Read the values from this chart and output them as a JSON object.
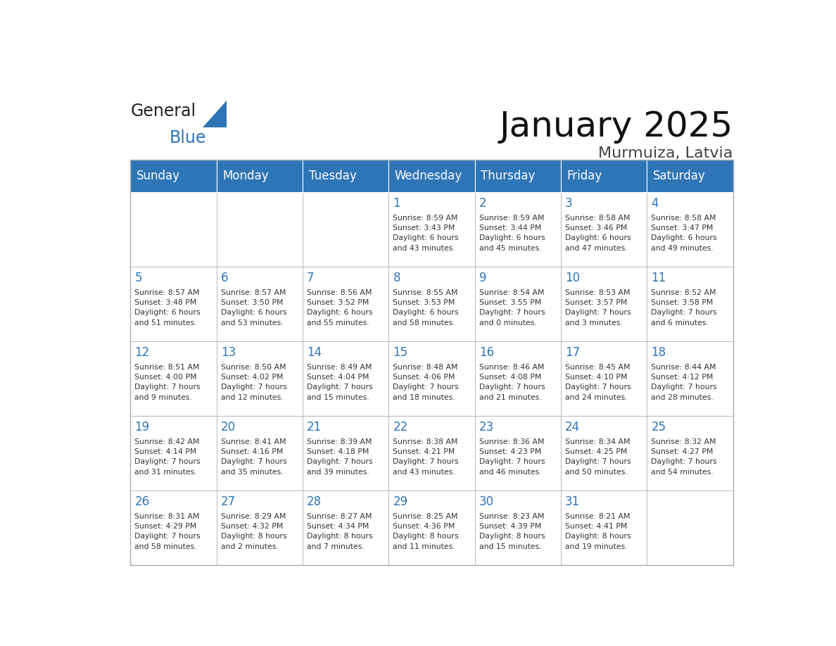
{
  "title": "January 2025",
  "subtitle": "Murmuiza, Latvia",
  "header_color": "#2E75B6",
  "header_text_color": "#FFFFFF",
  "cell_bg_color": "#FFFFFF",
  "cell_text_color": "#333333",
  "day_num_color": "#2E75B6",
  "grid_color": "#AAAAAA",
  "days_of_week": [
    "Sunday",
    "Monday",
    "Tuesday",
    "Wednesday",
    "Thursday",
    "Friday",
    "Saturday"
  ],
  "weeks": [
    [
      {
        "day": "",
        "info": ""
      },
      {
        "day": "",
        "info": ""
      },
      {
        "day": "",
        "info": ""
      },
      {
        "day": "1",
        "info": "Sunrise: 8:59 AM\nSunset: 3:43 PM\nDaylight: 6 hours\nand 43 minutes."
      },
      {
        "day": "2",
        "info": "Sunrise: 8:59 AM\nSunset: 3:44 PM\nDaylight: 6 hours\nand 45 minutes."
      },
      {
        "day": "3",
        "info": "Sunrise: 8:58 AM\nSunset: 3:46 PM\nDaylight: 6 hours\nand 47 minutes."
      },
      {
        "day": "4",
        "info": "Sunrise: 8:58 AM\nSunset: 3:47 PM\nDaylight: 6 hours\nand 49 minutes."
      }
    ],
    [
      {
        "day": "5",
        "info": "Sunrise: 8:57 AM\nSunset: 3:48 PM\nDaylight: 6 hours\nand 51 minutes."
      },
      {
        "day": "6",
        "info": "Sunrise: 8:57 AM\nSunset: 3:50 PM\nDaylight: 6 hours\nand 53 minutes."
      },
      {
        "day": "7",
        "info": "Sunrise: 8:56 AM\nSunset: 3:52 PM\nDaylight: 6 hours\nand 55 minutes."
      },
      {
        "day": "8",
        "info": "Sunrise: 8:55 AM\nSunset: 3:53 PM\nDaylight: 6 hours\nand 58 minutes."
      },
      {
        "day": "9",
        "info": "Sunrise: 8:54 AM\nSunset: 3:55 PM\nDaylight: 7 hours\nand 0 minutes."
      },
      {
        "day": "10",
        "info": "Sunrise: 8:53 AM\nSunset: 3:57 PM\nDaylight: 7 hours\nand 3 minutes."
      },
      {
        "day": "11",
        "info": "Sunrise: 8:52 AM\nSunset: 3:58 PM\nDaylight: 7 hours\nand 6 minutes."
      }
    ],
    [
      {
        "day": "12",
        "info": "Sunrise: 8:51 AM\nSunset: 4:00 PM\nDaylight: 7 hours\nand 9 minutes."
      },
      {
        "day": "13",
        "info": "Sunrise: 8:50 AM\nSunset: 4:02 PM\nDaylight: 7 hours\nand 12 minutes."
      },
      {
        "day": "14",
        "info": "Sunrise: 8:49 AM\nSunset: 4:04 PM\nDaylight: 7 hours\nand 15 minutes."
      },
      {
        "day": "15",
        "info": "Sunrise: 8:48 AM\nSunset: 4:06 PM\nDaylight: 7 hours\nand 18 minutes."
      },
      {
        "day": "16",
        "info": "Sunrise: 8:46 AM\nSunset: 4:08 PM\nDaylight: 7 hours\nand 21 minutes."
      },
      {
        "day": "17",
        "info": "Sunrise: 8:45 AM\nSunset: 4:10 PM\nDaylight: 7 hours\nand 24 minutes."
      },
      {
        "day": "18",
        "info": "Sunrise: 8:44 AM\nSunset: 4:12 PM\nDaylight: 7 hours\nand 28 minutes."
      }
    ],
    [
      {
        "day": "19",
        "info": "Sunrise: 8:42 AM\nSunset: 4:14 PM\nDaylight: 7 hours\nand 31 minutes."
      },
      {
        "day": "20",
        "info": "Sunrise: 8:41 AM\nSunset: 4:16 PM\nDaylight: 7 hours\nand 35 minutes."
      },
      {
        "day": "21",
        "info": "Sunrise: 8:39 AM\nSunset: 4:18 PM\nDaylight: 7 hours\nand 39 minutes."
      },
      {
        "day": "22",
        "info": "Sunrise: 8:38 AM\nSunset: 4:21 PM\nDaylight: 7 hours\nand 43 minutes."
      },
      {
        "day": "23",
        "info": "Sunrise: 8:36 AM\nSunset: 4:23 PM\nDaylight: 7 hours\nand 46 minutes."
      },
      {
        "day": "24",
        "info": "Sunrise: 8:34 AM\nSunset: 4:25 PM\nDaylight: 7 hours\nand 50 minutes."
      },
      {
        "day": "25",
        "info": "Sunrise: 8:32 AM\nSunset: 4:27 PM\nDaylight: 7 hours\nand 54 minutes."
      }
    ],
    [
      {
        "day": "26",
        "info": "Sunrise: 8:31 AM\nSunset: 4:29 PM\nDaylight: 7 hours\nand 58 minutes."
      },
      {
        "day": "27",
        "info": "Sunrise: 8:29 AM\nSunset: 4:32 PM\nDaylight: 8 hours\nand 2 minutes."
      },
      {
        "day": "28",
        "info": "Sunrise: 8:27 AM\nSunset: 4:34 PM\nDaylight: 8 hours\nand 7 minutes."
      },
      {
        "day": "29",
        "info": "Sunrise: 8:25 AM\nSunset: 4:36 PM\nDaylight: 8 hours\nand 11 minutes."
      },
      {
        "day": "30",
        "info": "Sunrise: 8:23 AM\nSunset: 4:39 PM\nDaylight: 8 hours\nand 15 minutes."
      },
      {
        "day": "31",
        "info": "Sunrise: 8:21 AM\nSunset: 4:41 PM\nDaylight: 8 hours\nand 19 minutes."
      },
      {
        "day": "",
        "info": ""
      }
    ]
  ],
  "logo_text_general": "General",
  "logo_text_blue": "Blue",
  "logo_color_general": "#222222",
  "logo_color_blue": "#2E75B6",
  "logo_triangle_color": "#2E75B6"
}
